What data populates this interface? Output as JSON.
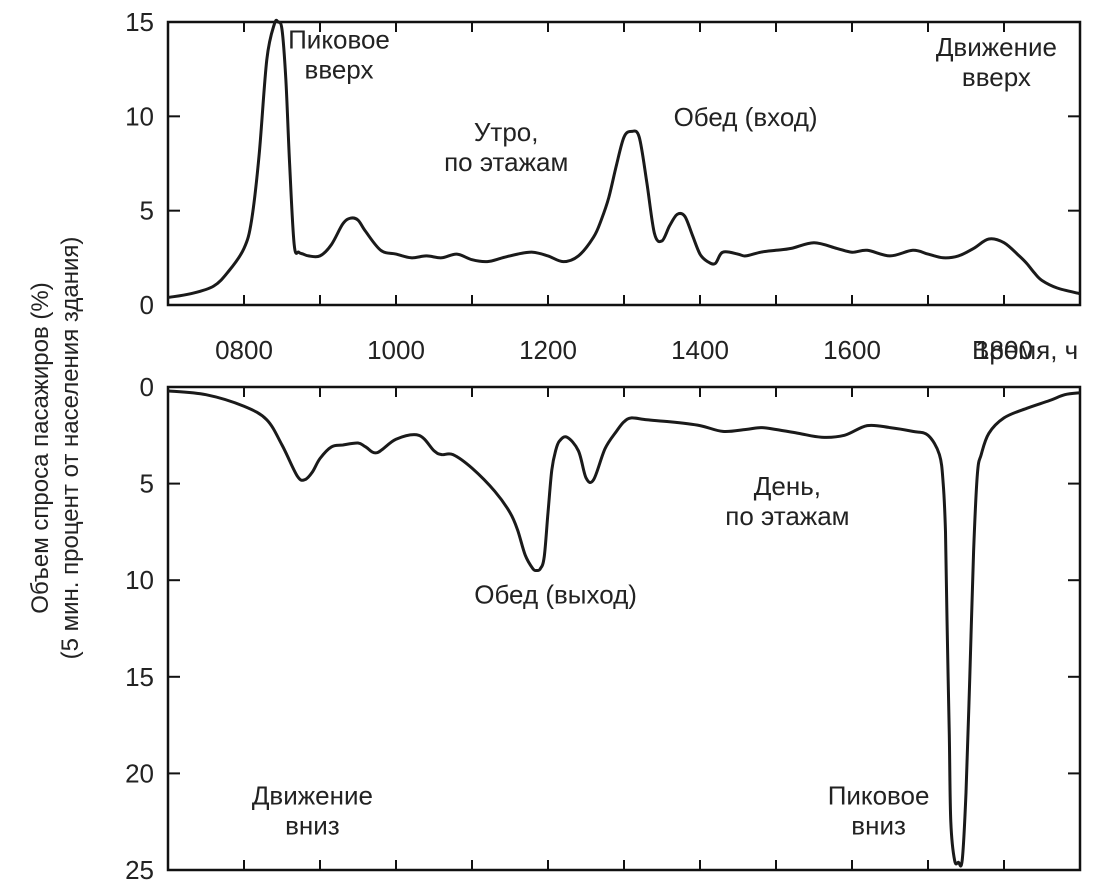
{
  "chart_data": [
    {
      "type": "line",
      "panel": "upper",
      "ylabel_line1": "Объем спроса пасажиров (%)",
      "ylabel_line2": "(5 мин. процент от населения здания)",
      "xlabel": "Время, ч",
      "xlim": [
        700,
        1900
      ],
      "ylim": [
        0,
        15
      ],
      "yticks": [
        "0",
        "5",
        "10",
        "15"
      ],
      "xtick_values": [
        800,
        1000,
        1200,
        1400,
        1600,
        1800
      ],
      "xtick_labels": [
        "0800",
        "1000",
        "1200",
        "1400",
        "1600",
        "1800"
      ],
      "series": [
        {
          "x": [
            700,
            730,
            760,
            780,
            800,
            810,
            820,
            830,
            840,
            845,
            850,
            855,
            860,
            866,
            872,
            878,
            885,
            900,
            915,
            930,
            940,
            950,
            960,
            980,
            1000,
            1020,
            1040,
            1060,
            1080,
            1100,
            1120,
            1140,
            1160,
            1180,
            1200,
            1220,
            1240,
            1260,
            1270,
            1280,
            1290,
            1300,
            1310,
            1320,
            1330,
            1340,
            1350,
            1360,
            1370,
            1380,
            1390,
            1400,
            1410,
            1420,
            1430,
            1450,
            1460,
            1480,
            1500,
            1520,
            1550,
            1580,
            1600,
            1620,
            1650,
            1680,
            1700,
            1720,
            1740,
            1760,
            1780,
            1800,
            1820,
            1830,
            1840,
            1850,
            1870,
            1900
          ],
          "y": [
            0.4,
            0.6,
            1.0,
            1.8,
            3.0,
            4.5,
            8.0,
            13.0,
            14.9,
            15.0,
            14.6,
            12.0,
            7.5,
            3.2,
            2.8,
            2.7,
            2.6,
            2.6,
            3.2,
            4.3,
            4.6,
            4.5,
            3.9,
            2.9,
            2.7,
            2.5,
            2.6,
            2.5,
            2.7,
            2.4,
            2.3,
            2.5,
            2.7,
            2.8,
            2.6,
            2.3,
            2.6,
            3.6,
            4.5,
            5.7,
            7.4,
            8.9,
            9.2,
            8.9,
            6.5,
            3.8,
            3.4,
            4.2,
            4.8,
            4.7,
            3.7,
            2.7,
            2.3,
            2.2,
            2.8,
            2.7,
            2.6,
            2.8,
            2.9,
            3.0,
            3.3,
            3.0,
            2.8,
            2.9,
            2.6,
            2.9,
            2.7,
            2.5,
            2.6,
            3.0,
            3.5,
            3.3,
            2.6,
            2.2,
            1.7,
            1.3,
            0.9,
            0.6
          ]
        }
      ],
      "annotations": [
        {
          "lines": [
            "Пиковое",
            "вверх"
          ],
          "x": 925,
          "y": 13.6
        },
        {
          "lines": [
            "Утро,",
            "по этажам"
          ],
          "x": 1145,
          "y": 8.7
        },
        {
          "lines": [
            "Обед (вход)"
          ],
          "x": 1460,
          "y": 9.5
        },
        {
          "lines": [
            "Движение",
            "вверх"
          ],
          "x": 1790,
          "y": 13.2
        }
      ]
    },
    {
      "type": "line",
      "panel": "lower",
      "xlim": [
        700,
        1900
      ],
      "ylim": [
        0,
        25
      ],
      "y_inverted": true,
      "yticks": [
        "0",
        "5",
        "10",
        "15",
        "20",
        "25"
      ],
      "series": [
        {
          "x": [
            700,
            750,
            800,
            830,
            850,
            870,
            880,
            890,
            900,
            915,
            930,
            950,
            960,
            975,
            1000,
            1030,
            1050,
            1060,
            1075,
            1100,
            1130,
            1150,
            1160,
            1170,
            1180,
            1185,
            1190,
            1195,
            1200,
            1205,
            1210,
            1215,
            1225,
            1240,
            1250,
            1260,
            1275,
            1290,
            1300,
            1310,
            1330,
            1360,
            1400,
            1430,
            1460,
            1480,
            1500,
            1530,
            1560,
            1590,
            1620,
            1650,
            1680,
            1700,
            1715,
            1720,
            1723,
            1725,
            1728,
            1730,
            1735,
            1740,
            1745,
            1750,
            1755,
            1760,
            1765,
            1770,
            1780,
            1800,
            1830,
            1860,
            1880,
            1900
          ],
          "y": [
            0.2,
            0.4,
            1.0,
            1.7,
            3.0,
            4.6,
            4.8,
            4.4,
            3.7,
            3.1,
            3.0,
            2.9,
            3.1,
            3.4,
            2.7,
            2.5,
            3.3,
            3.5,
            3.5,
            4.2,
            5.4,
            6.5,
            7.4,
            8.7,
            9.4,
            9.5,
            9.4,
            8.8,
            6.5,
            4.3,
            3.3,
            2.8,
            2.6,
            3.3,
            4.7,
            4.8,
            3.2,
            2.3,
            1.8,
            1.6,
            1.7,
            1.8,
            2.0,
            2.3,
            2.2,
            2.1,
            2.2,
            2.4,
            2.6,
            2.5,
            2.0,
            2.1,
            2.3,
            2.5,
            3.5,
            5.0,
            7.5,
            12.0,
            18.0,
            22.5,
            24.5,
            24.6,
            24.5,
            21.0,
            15.0,
            8.5,
            4.5,
            3.5,
            2.4,
            1.6,
            1.1,
            0.7,
            0.4,
            0.3
          ]
        }
      ],
      "annotations": [
        {
          "lines": [
            "День,",
            "по этажам"
          ],
          "x": 1515,
          "y": 5.6
        },
        {
          "lines": [
            "Обед (выход)"
          ],
          "x": 1210,
          "y": 11.2
        },
        {
          "lines": [
            "Движение",
            "вниз"
          ],
          "x": 890,
          "y": 21.6
        },
        {
          "lines": [
            "Пиковое",
            "вниз"
          ],
          "x": 1635,
          "y": 21.6
        }
      ]
    }
  ]
}
